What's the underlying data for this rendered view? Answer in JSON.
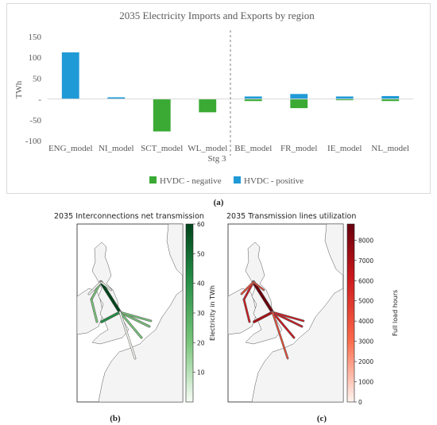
{
  "panels": {
    "a": {
      "caption": "(a)"
    },
    "b": {
      "caption": "(b)"
    },
    "c": {
      "caption": "(c)"
    }
  },
  "chart_data": [
    {
      "type": "bar",
      "title": "2035 Electricity Imports and Exports by region",
      "ylabel": "TWh",
      "xlabel": "",
      "group_label": "Stg 3",
      "ylim": [
        -100,
        150
      ],
      "yticks": [
        150,
        100,
        50,
        0,
        -50,
        -100
      ],
      "ytick_labels": [
        "150",
        "100",
        "50",
        "-",
        "-50",
        "-100"
      ],
      "grid": false,
      "legend_position": "bottom",
      "categories": [
        "ENG_model",
        "NI_model",
        "SCT_model",
        "WL_model",
        "BE_model",
        "FR_model",
        "IE_model",
        "NL_model"
      ],
      "separator_after_category": "WL_model",
      "series": [
        {
          "name": "HVDC - negative",
          "color": "#3aaa35",
          "values": [
            0,
            0,
            -78,
            -32,
            -5,
            -22,
            -3,
            -5
          ]
        },
        {
          "name": "HVDC - positive",
          "color": "#1f9ad6",
          "values": [
            112,
            4,
            0,
            0,
            6,
            12,
            6,
            7
          ]
        }
      ]
    },
    {
      "type": "map",
      "title": "2035 Interconnections net transmission",
      "colorbar_label": "Electricity in TWh",
      "colorbar_range": [
        0,
        60
      ],
      "colorbar_ticks": [
        10,
        20,
        30,
        40,
        50,
        60
      ],
      "colormap_colors": [
        "#f7fcf5",
        "#74c476",
        "#238b45",
        "#00441b"
      ]
    },
    {
      "type": "map",
      "title": "2035 Transmission lines utilization",
      "colorbar_label": "Full load hours",
      "colorbar_range": [
        0,
        8800
      ],
      "colorbar_ticks": [
        0,
        1000,
        2000,
        3000,
        4000,
        5000,
        6000,
        7000,
        8000
      ],
      "colormap_colors": [
        "#fff5f0",
        "#fb6a4a",
        "#cb181d",
        "#67000d"
      ]
    }
  ]
}
